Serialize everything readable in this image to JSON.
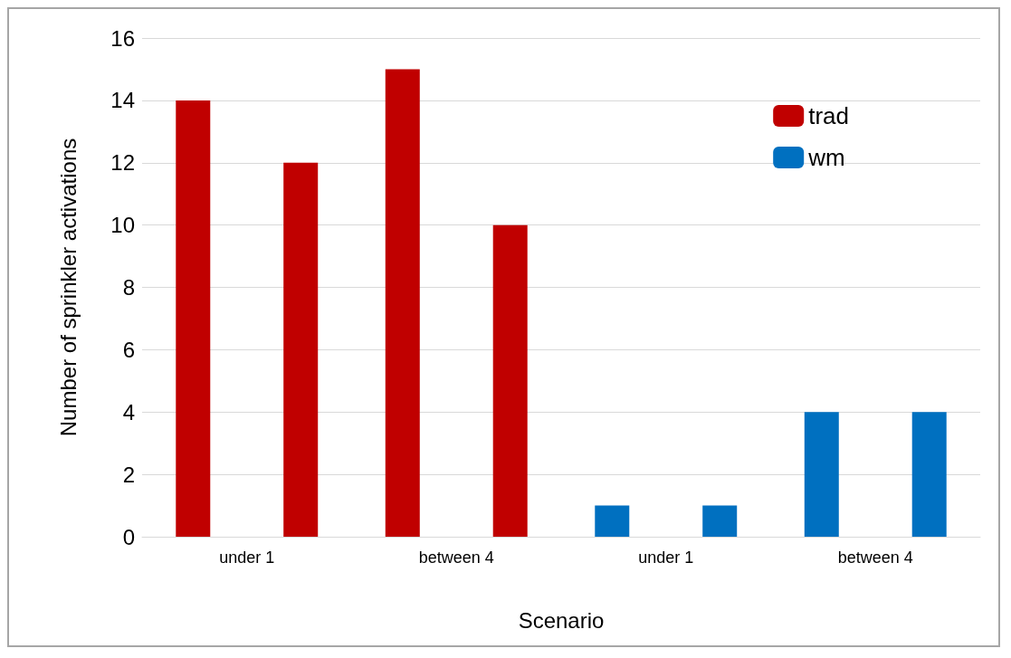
{
  "chart_data": {
    "type": "bar",
    "xlabel": "Scenario",
    "ylabel": "Number of sprinkler activations",
    "categories": [
      "under 1",
      "between 4",
      "under 1",
      "between 4"
    ],
    "series": [
      {
        "name": "trad",
        "color": "#c00000",
        "values": [
          14,
          15,
          null,
          null
        ]
      },
      {
        "color": "#c00000",
        "values": [
          12,
          10,
          null,
          null
        ]
      },
      {
        "name": "wm",
        "color": "#0070c0",
        "values": [
          null,
          null,
          1,
          4
        ]
      },
      {
        "color": "#0070c0",
        "values": [
          null,
          null,
          1,
          4
        ]
      }
    ],
    "ylim": [
      0,
      16
    ],
    "yticks": [
      0,
      2,
      4,
      6,
      8,
      10,
      12,
      14,
      16
    ],
    "grid": "y",
    "legend": "top right"
  }
}
